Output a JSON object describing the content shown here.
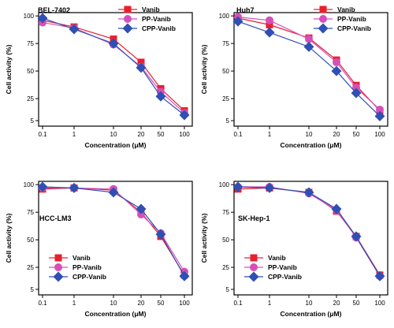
{
  "colors": {
    "Vanib": "#e8202e",
    "PP-Vanib": "#d64fb9",
    "CPP-Vanib": "#2f4fb4"
  },
  "chart_data": [
    {
      "type": "line",
      "title": "BEL-7402",
      "xlabel": "Concentration (μM)",
      "ylabel": "Cell activity (%)",
      "x_ticks": [
        "0.1",
        "1",
        "10",
        "20",
        "50",
        "100"
      ],
      "y_ticks": [
        5,
        25,
        50,
        75,
        100
      ],
      "ylim": [
        0,
        103
      ],
      "legend": "top-right",
      "series": [
        {
          "name": "Vanib",
          "marker": "square",
          "values": [
            96,
            90,
            79,
            58,
            34,
            14
          ]
        },
        {
          "name": "PP-Vanib",
          "marker": "circle",
          "values": [
            94,
            89,
            74,
            54,
            31,
            12
          ]
        },
        {
          "name": "CPP-Vanib",
          "marker": "diamond",
          "values": [
            98,
            88,
            75,
            53,
            27,
            10
          ]
        }
      ]
    },
    {
      "type": "line",
      "title": "Huh7",
      "xlabel": "Concentration (μM)",
      "ylabel": "Cell activity (%)",
      "x_ticks": [
        "0.1",
        "1",
        "10",
        "20",
        "50",
        "100"
      ],
      "y_ticks": [
        5,
        25,
        50,
        75,
        100
      ],
      "ylim": [
        0,
        103
      ],
      "legend": "top-right",
      "series": [
        {
          "name": "Vanib",
          "marker": "square",
          "values": [
            98,
            92,
            80,
            60,
            37,
            14
          ]
        },
        {
          "name": "PP-Vanib",
          "marker": "circle",
          "values": [
            99,
            96,
            79,
            58,
            35,
            15
          ]
        },
        {
          "name": "CPP-Vanib",
          "marker": "diamond",
          "values": [
            95,
            85,
            72,
            50,
            30,
            9
          ]
        }
      ]
    },
    {
      "type": "line",
      "title": "HCC-LM3",
      "xlabel": "Concentration (μM)",
      "ylabel": "Cell activity (%)",
      "x_ticks": [
        "0.1",
        "1",
        "10",
        "20",
        "50",
        "100"
      ],
      "y_ticks": [
        5,
        25,
        50,
        75,
        100
      ],
      "ylim": [
        0,
        103
      ],
      "legend": "bottom-left",
      "series": [
        {
          "name": "Vanib",
          "marker": "square",
          "values": [
            96,
            97,
            95,
            75,
            53,
            18
          ]
        },
        {
          "name": "PP-Vanib",
          "marker": "circle",
          "values": [
            97,
            97,
            96,
            73,
            56,
            21
          ]
        },
        {
          "name": "CPP-Vanib",
          "marker": "diamond",
          "values": [
            98,
            97,
            93,
            78,
            55,
            17
          ]
        }
      ]
    },
    {
      "type": "line",
      "title": "SK-Hep-1",
      "xlabel": "Concentration (μM)",
      "ylabel": "Cell activity (%)",
      "x_ticks": [
        "0.1",
        "1",
        "10",
        "20",
        "50",
        "100"
      ],
      "y_ticks": [
        5,
        25,
        50,
        75,
        100
      ],
      "ylim": [
        0,
        103
      ],
      "legend": "bottom-left",
      "series": [
        {
          "name": "Vanib",
          "marker": "square",
          "values": [
            96,
            97,
            93,
            76,
            53,
            18
          ]
        },
        {
          "name": "PP-Vanib",
          "marker": "circle",
          "values": [
            98,
            98,
            92,
            77,
            52,
            17
          ]
        },
        {
          "name": "CPP-Vanib",
          "marker": "diamond",
          "values": [
            98,
            97,
            93,
            78,
            53,
            17
          ]
        }
      ]
    }
  ]
}
